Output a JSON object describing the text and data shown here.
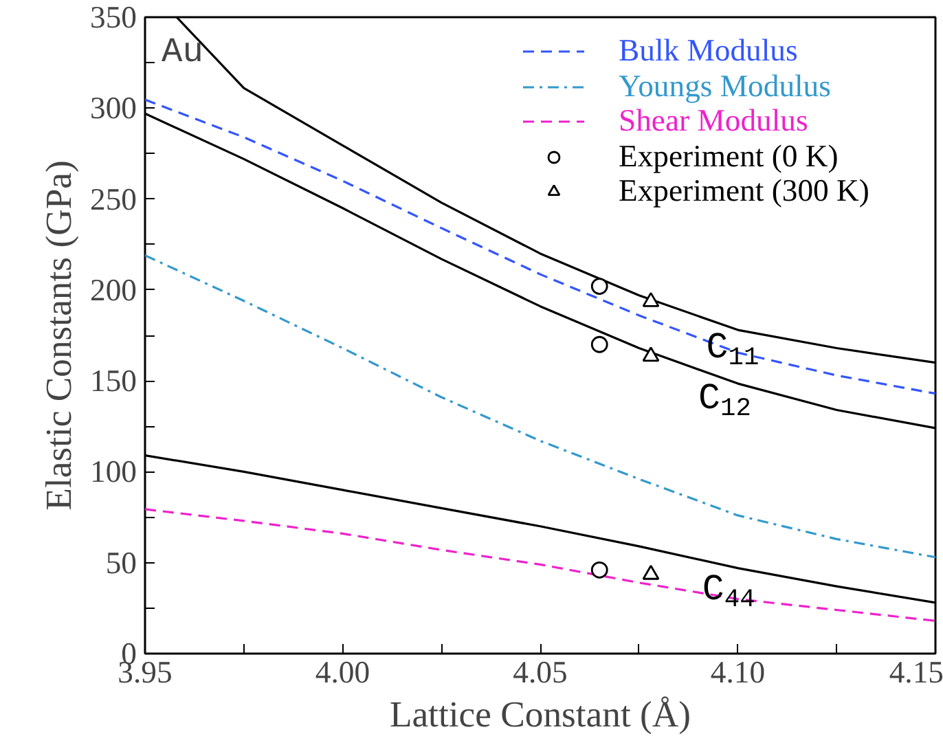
{
  "chart_data": {
    "type": "line",
    "xlabel": "Lattice Constant (Å)",
    "ylabel": "Elastic Constants (GPa)",
    "xlim": [
      3.95,
      4.15
    ],
    "ylim": [
      0,
      350
    ],
    "xticks": [
      3.95,
      {
        "value": 3.975,
        "label": null
      },
      "4.00",
      {
        "value": 4.025,
        "label": null
      },
      4.05,
      {
        "value": 4.075,
        "label": null
      },
      "4.10",
      {
        "value": 4.125,
        "label": null
      },
      4.15
    ],
    "yticks": [
      0,
      {
        "value": 25,
        "label": null
      },
      50,
      {
        "value": 75,
        "label": null
      },
      100,
      {
        "value": 125,
        "label": null
      },
      150,
      {
        "value": 175,
        "label": null
      },
      200,
      {
        "value": 225,
        "label": null
      },
      250,
      {
        "value": 275,
        "label": null
      },
      300,
      {
        "value": 325,
        "label": null
      },
      350
    ],
    "grid": false,
    "legend": "top right",
    "series": [
      {
        "color": "#000000",
        "line_style": "solid",
        "x": [
          3.958,
          3.975,
          4.0,
          4.025,
          4.05,
          4.075,
          4.1,
          4.125,
          4.15
        ],
        "values": [
          350,
          311,
          279.5,
          248,
          220,
          197,
          178,
          168,
          160
        ]
      },
      {
        "name": "Bulk Modulus",
        "color": "#3355ff",
        "line_style": "dashed",
        "x": [
          3.95,
          3.975,
          4.0,
          4.025,
          4.05,
          4.075,
          4.1,
          4.125,
          4.15
        ],
        "values": [
          304.6,
          284,
          260,
          234,
          208.6,
          186,
          165.5,
          153,
          143
        ]
      },
      {
        "color": "#000000",
        "line_style": "solid",
        "x": [
          3.95,
          3.975,
          4.0,
          4.025,
          4.05,
          4.075,
          4.1,
          4.125,
          4.15
        ],
        "values": [
          297,
          272,
          245,
          217,
          191,
          168,
          148.5,
          134,
          124
        ]
      },
      {
        "name": "Youngs Modulus",
        "color": "#3399cc",
        "line_style": "dashdot",
        "x": [
          3.95,
          3.975,
          4.0,
          4.025,
          4.05,
          4.075,
          4.1,
          4.125,
          4.15
        ],
        "values": [
          219,
          194,
          168,
          141,
          117,
          96,
          76,
          63,
          53
        ]
      },
      {
        "color": "#000000",
        "line_style": "solid",
        "x": [
          3.95,
          3.975,
          4.0,
          4.025,
          4.05,
          4.075,
          4.1,
          4.125,
          4.15
        ],
        "values": [
          109,
          100,
          90,
          80,
          70,
          59,
          47,
          37,
          28
        ]
      },
      {
        "name": "Shear Modulus",
        "color": "#ee22cc",
        "line_style": "dashed",
        "x": [
          3.95,
          3.975,
          4.0,
          4.025,
          4.05,
          4.075,
          4.1,
          4.125,
          4.15
        ],
        "values": [
          79.4,
          73,
          66,
          57,
          49,
          39,
          30,
          24,
          18
        ]
      },
      {
        "name": "Experiment (0 K)",
        "type": "scatter",
        "marker": "circle",
        "color": "#000000",
        "x": [
          4.065,
          4.065,
          4.065
        ],
        "values": [
          202,
          170,
          46
        ]
      },
      {
        "name": "Experiment (300 K)",
        "type": "scatter",
        "marker": "triangle",
        "color": "#000000",
        "x": [
          4.078,
          4.078,
          4.078
        ],
        "values": [
          193.5,
          163.5,
          43.5
        ]
      }
    ],
    "annotations": [
      "Au",
      {
        "text": "C$_{11}$",
        "x": 4.092,
        "y": 184
      },
      {
        "text": "C$_{12}$",
        "x": 4.09,
        "y": 156
      },
      {
        "text": "C$_{44}$",
        "x": 4.091,
        "y": 51
      }
    ]
  }
}
